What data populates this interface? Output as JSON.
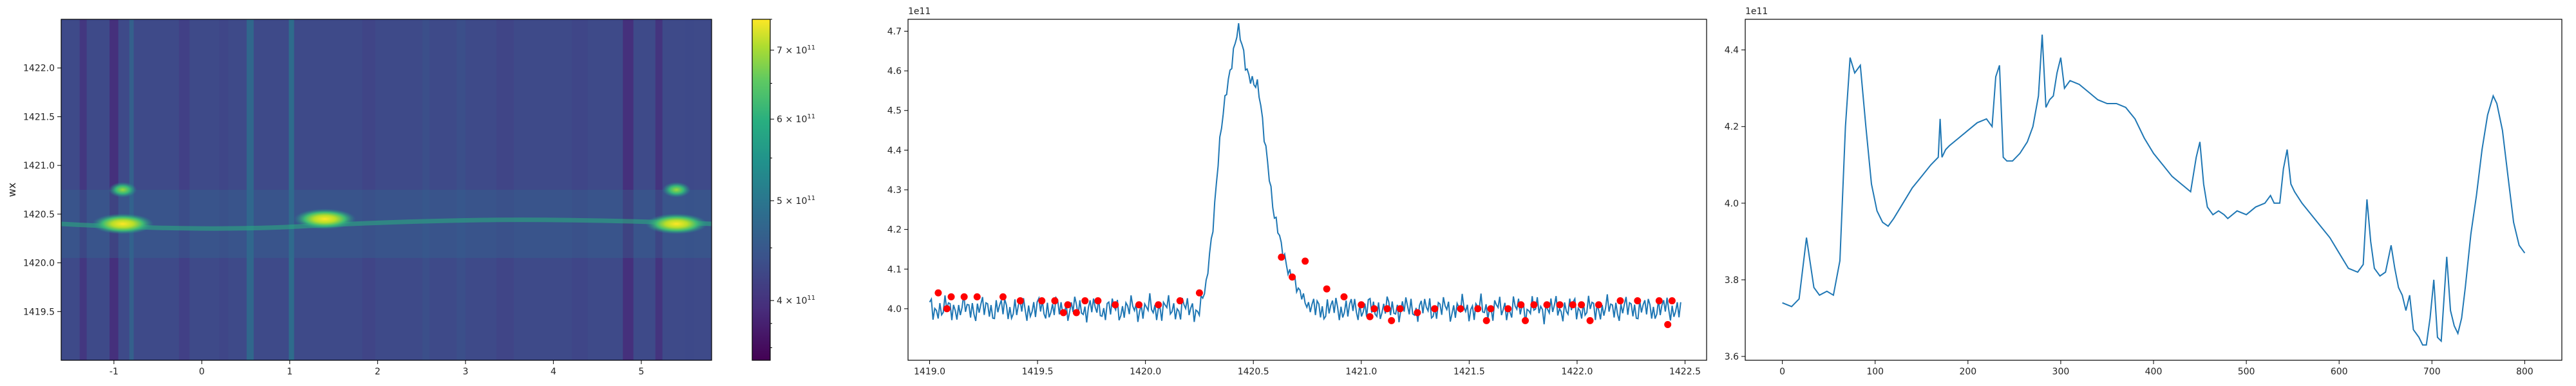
{
  "figure": {
    "panels": 4
  },
  "chart_data": [
    {
      "type": "heatmap",
      "title": "",
      "xlabel": "",
      "ylabel": "wx",
      "xlim": [
        -1.6,
        5.8
      ],
      "ylim": [
        1419.0,
        1422.5
      ],
      "xticks": [
        -1,
        0,
        1,
        2,
        3,
        4,
        5
      ],
      "yticks": [
        1419.5,
        1420.0,
        1420.5,
        1421.0,
        1421.5,
        1422.0
      ],
      "ridge_center": 1420.4,
      "bright_spots": [
        {
          "x": -0.9,
          "y": 1420.4
        },
        {
          "x": -0.9,
          "y": 1420.75
        },
        {
          "x": 1.4,
          "y": 1420.45
        },
        {
          "x": 5.4,
          "y": 1420.4
        },
        {
          "x": 5.4,
          "y": 1420.75
        }
      ],
      "colormap": "viridis"
    },
    {
      "type": "colorbar",
      "scale": "log",
      "range": [
        350000000000.0,
        750000000000.0
      ],
      "tick_values": [
        400000000000.0,
        500000000000.0,
        600000000000.0,
        700000000000.0
      ],
      "tick_labels": [
        {
          "base": "4 × 10",
          "exp": "11"
        },
        {
          "base": "5 × 10",
          "exp": "11"
        },
        {
          "base": "6 × 10",
          "exp": "11"
        },
        {
          "base": "7 × 10",
          "exp": "11"
        }
      ]
    },
    {
      "type": "line",
      "title": "",
      "xlabel": "",
      "ylabel": "",
      "offset_label": "1e11",
      "xlim": [
        1418.9,
        1422.6
      ],
      "ylim": [
        3.87,
        4.73
      ],
      "xticks": [
        1419.0,
        1419.5,
        1420.0,
        1420.5,
        1421.0,
        1421.5,
        1422.0,
        1422.5
      ],
      "yticks": [
        4.0,
        4.1,
        4.2,
        4.3,
        4.4,
        4.5,
        4.6,
        4.7
      ],
      "x_range": [
        1419.0,
        1422.48
      ],
      "baseline": 4.0,
      "peak": {
        "x": 1420.43,
        "y": 4.71
      },
      "peak_profile": [
        [
          1420.25,
          4.0
        ],
        [
          1420.28,
          4.05
        ],
        [
          1420.31,
          4.2
        ],
        [
          1420.35,
          4.45
        ],
        [
          1420.39,
          4.6
        ],
        [
          1420.43,
          4.71
        ],
        [
          1420.46,
          4.62
        ],
        [
          1420.49,
          4.58
        ],
        [
          1420.52,
          4.56
        ],
        [
          1420.56,
          4.4
        ],
        [
          1420.6,
          4.22
        ],
        [
          1420.65,
          4.12
        ],
        [
          1420.7,
          4.05
        ],
        [
          1420.75,
          4.02
        ]
      ],
      "markers": {
        "color": "#ff0000",
        "points": [
          [
            1419.04,
            4.04
          ],
          [
            1419.1,
            4.03
          ],
          [
            1419.16,
            4.03
          ],
          [
            1419.22,
            4.03
          ],
          [
            1419.34,
            4.03
          ],
          [
            1419.42,
            4.02
          ],
          [
            1419.52,
            4.02
          ],
          [
            1419.58,
            4.02
          ],
          [
            1419.64,
            4.01
          ],
          [
            1419.72,
            4.02
          ],
          [
            1419.78,
            4.02
          ],
          [
            1419.86,
            4.01
          ],
          [
            1419.97,
            4.01
          ],
          [
            1420.06,
            4.01
          ],
          [
            1420.16,
            4.02
          ],
          [
            1420.25,
            4.04
          ],
          [
            1420.63,
            4.13
          ],
          [
            1420.68,
            4.08
          ],
          [
            1420.74,
            4.12
          ],
          [
            1420.84,
            4.05
          ],
          [
            1420.92,
            4.03
          ],
          [
            1421.0,
            4.01
          ],
          [
            1421.06,
            4.0
          ],
          [
            1421.12,
            4.0
          ],
          [
            1421.18,
            4.0
          ],
          [
            1421.26,
            3.99
          ],
          [
            1421.34,
            4.0
          ],
          [
            1421.46,
            4.0
          ],
          [
            1421.54,
            4.0
          ],
          [
            1421.6,
            4.0
          ],
          [
            1421.68,
            4.0
          ],
          [
            1421.74,
            4.01
          ],
          [
            1421.8,
            4.01
          ],
          [
            1421.86,
            4.01
          ],
          [
            1421.92,
            4.01
          ],
          [
            1421.98,
            4.01
          ],
          [
            1422.02,
            4.01
          ],
          [
            1422.1,
            4.01
          ],
          [
            1422.2,
            4.02
          ],
          [
            1422.28,
            4.02
          ],
          [
            1422.38,
            4.02
          ],
          [
            1422.44,
            4.02
          ],
          [
            1419.08,
            4.0
          ],
          [
            1419.62,
            3.99
          ],
          [
            1419.68,
            3.99
          ],
          [
            1421.04,
            3.98
          ],
          [
            1421.14,
            3.97
          ],
          [
            1421.58,
            3.97
          ],
          [
            1421.76,
            3.97
          ],
          [
            1422.06,
            3.97
          ],
          [
            1422.42,
            3.96
          ]
        ]
      },
      "color": "#1f77b4"
    },
    {
      "type": "line",
      "title": "",
      "xlabel": "",
      "ylabel": "",
      "offset_label": "1e11",
      "xlim": [
        -40,
        840
      ],
      "ylim": [
        3.59,
        4.48
      ],
      "xticks": [
        0,
        100,
        200,
        300,
        400,
        500,
        600,
        700,
        800
      ],
      "yticks": [
        3.6,
        3.8,
        4.0,
        4.2,
        4.4
      ],
      "x": [
        0,
        10,
        18,
        26,
        34,
        40,
        48,
        55,
        62,
        68,
        73,
        78,
        84,
        90,
        96,
        102,
        108,
        114,
        120,
        130,
        140,
        150,
        160,
        168,
        170,
        172,
        176,
        180,
        190,
        200,
        210,
        220,
        226,
        230,
        234,
        238,
        242,
        248,
        256,
        264,
        270,
        276,
        280,
        284,
        288,
        292,
        296,
        300,
        304,
        310,
        320,
        330,
        340,
        350,
        360,
        370,
        380,
        390,
        400,
        410,
        420,
        430,
        440,
        446,
        450,
        454,
        458,
        464,
        470,
        476,
        480,
        490,
        500,
        510,
        520,
        526,
        530,
        536,
        540,
        544,
        548,
        552,
        560,
        570,
        580,
        590,
        600,
        610,
        620,
        626,
        630,
        634,
        638,
        644,
        650,
        656,
        660,
        664,
        668,
        672,
        676,
        680,
        686,
        690,
        694,
        698,
        702,
        706,
        710,
        716,
        720,
        724,
        728,
        732,
        736,
        742,
        748,
        754,
        760,
        766,
        770,
        776,
        782,
        788,
        794,
        800
      ],
      "y": [
        3.74,
        3.73,
        3.75,
        3.91,
        3.78,
        3.76,
        3.77,
        3.76,
        3.85,
        4.2,
        4.38,
        4.34,
        4.36,
        4.2,
        4.05,
        3.98,
        3.95,
        3.94,
        3.96,
        4.0,
        4.04,
        4.07,
        4.1,
        4.12,
        4.22,
        4.12,
        4.14,
        4.15,
        4.17,
        4.19,
        4.21,
        4.22,
        4.2,
        4.33,
        4.36,
        4.12,
        4.11,
        4.11,
        4.13,
        4.16,
        4.2,
        4.28,
        4.44,
        4.25,
        4.27,
        4.28,
        4.34,
        4.38,
        4.3,
        4.32,
        4.31,
        4.29,
        4.27,
        4.26,
        4.26,
        4.25,
        4.22,
        4.17,
        4.13,
        4.1,
        4.07,
        4.05,
        4.03,
        4.12,
        4.16,
        4.05,
        3.99,
        3.97,
        3.98,
        3.97,
        3.96,
        3.98,
        3.97,
        3.99,
        4.0,
        4.02,
        4.0,
        4.0,
        4.09,
        4.14,
        4.05,
        4.03,
        4.0,
        3.97,
        3.94,
        3.91,
        3.87,
        3.83,
        3.82,
        3.84,
        4.01,
        3.9,
        3.83,
        3.81,
        3.82,
        3.89,
        3.83,
        3.78,
        3.76,
        3.72,
        3.76,
        3.67,
        3.65,
        3.63,
        3.63,
        3.7,
        3.8,
        3.65,
        3.64,
        3.86,
        3.72,
        3.68,
        3.66,
        3.7,
        3.78,
        3.92,
        4.02,
        4.14,
        4.23,
        4.28,
        4.26,
        4.19,
        4.07,
        3.95,
        3.89,
        3.87
      ],
      "color": "#1f77b4"
    }
  ]
}
